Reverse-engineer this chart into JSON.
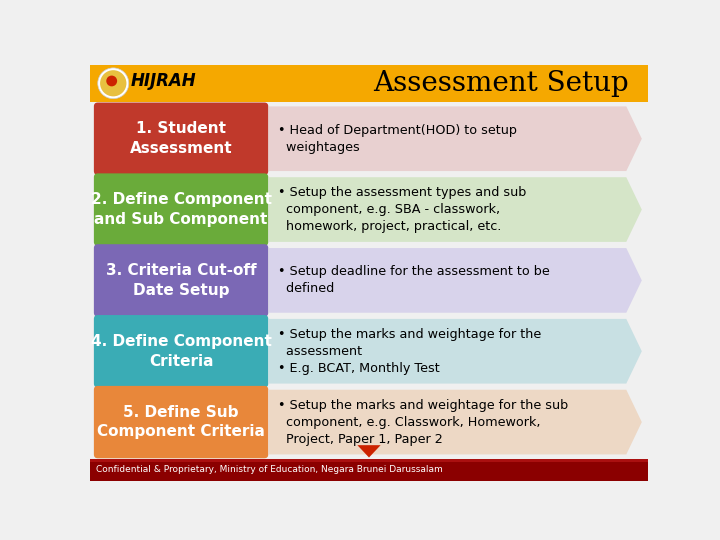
{
  "title": "Assessment Setup",
  "title_fontsize": 20,
  "header_bg": "#F5A800",
  "background": "#F0F0F0",
  "footer_bg": "#8B0000",
  "footer_text": "Confidential & Proprietary, Ministry of Education, Negara Brunei Darussalam",
  "rows": [
    {
      "left_text": "1. Student\nAssessment",
      "left_color": "#C0392B",
      "right_text": "• Head of Department(HOD) to setup\n  weightages",
      "right_color": "#E8D0D0"
    },
    {
      "left_text": "2. Define Component\nand Sub Component",
      "left_color": "#6AAB3A",
      "right_text": "• Setup the assessment types and sub\n  component, e.g. SBA - classwork,\n  homework, project, practical, etc.",
      "right_color": "#D5E5C8"
    },
    {
      "left_text": "3. Criteria Cut-off\nDate Setup",
      "left_color": "#7B68B5",
      "right_text": "• Setup deadline for the assessment to be\n  defined",
      "right_color": "#D8D3EB"
    },
    {
      "left_text": "4. Define Component\nCriteria",
      "left_color": "#3AACB5",
      "right_text": "• Setup the marks and weightage for the\n  assessment\n• E.g. BCAT, Monthly Test",
      "right_color": "#C8E0E3"
    },
    {
      "left_text": "5. Define Sub\nComponent Criteria",
      "left_color": "#E8873A",
      "right_text": "• Setup the marks and weightage for the sub\n  component, e.g. Classwork, Homework,\n  Project, Paper 1, Paper 2",
      "right_color": "#EDD8C5"
    }
  ]
}
